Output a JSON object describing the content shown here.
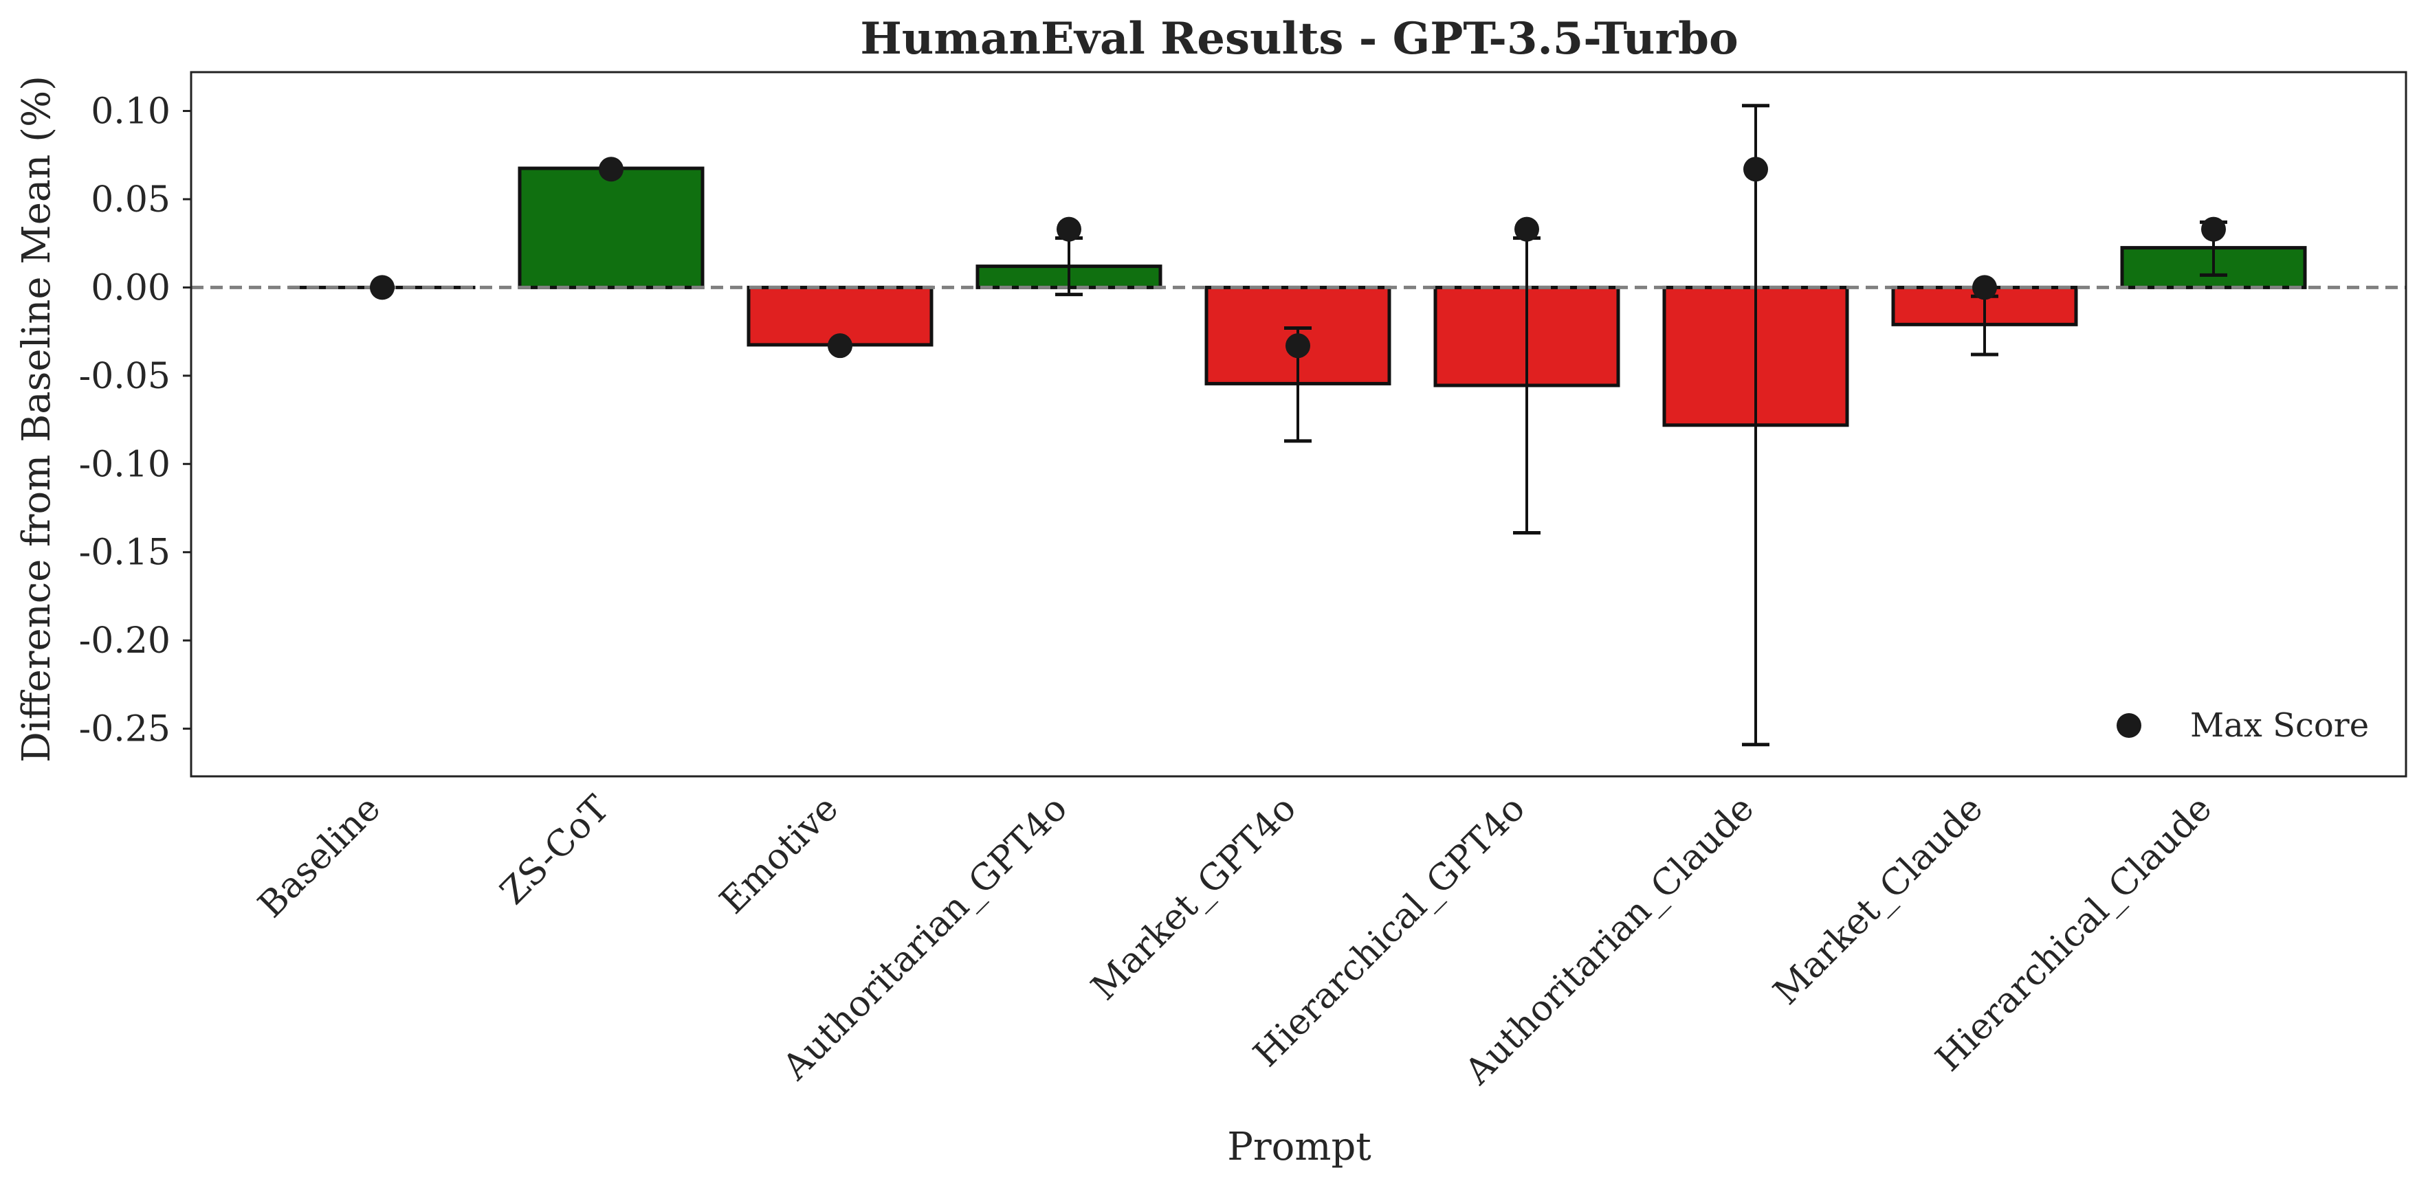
{
  "chart_data": {
    "type": "bar",
    "title": "HumanEval Results - GPT-3.5-Turbo",
    "xlabel": "Prompt",
    "ylabel": "Difference from Baseline Mean (%)",
    "categories": [
      "Baseline",
      "ZS-CoT",
      "Emotive",
      "Authoritarian_GPT4o",
      "Market_GPT4o",
      "Hierarchical_GPT4o",
      "Authoritarian_Claude",
      "Market_Claude",
      "Hierarchical_Claude"
    ],
    "values": [
      0.0,
      0.0675,
      -0.0325,
      0.012,
      -0.0545,
      -0.0555,
      -0.078,
      -0.021,
      0.0225
    ],
    "error_low": [
      null,
      null,
      null,
      -0.004,
      -0.087,
      -0.139,
      -0.259,
      -0.038,
      0.007
    ],
    "error_high": [
      null,
      null,
      null,
      0.028,
      -0.023,
      0.028,
      0.103,
      -0.005,
      0.037
    ],
    "max_score": [
      0.0,
      0.067,
      -0.033,
      0.033,
      -0.033,
      0.033,
      0.067,
      0.0,
      0.033
    ],
    "yticks": [
      "0.10",
      "0.05",
      "0.00",
      "-0.05",
      "-0.10",
      "-0.15",
      "-0.20",
      "-0.25"
    ],
    "ytick_values": [
      0.1,
      0.05,
      0.0,
      -0.05,
      -0.1,
      -0.15,
      -0.2,
      -0.25
    ],
    "ylim": [
      -0.277,
      0.122
    ],
    "baseline_reference": 0.0,
    "legend": {
      "label": "Max Score",
      "position": "lower-right"
    },
    "grid": false,
    "colors": {
      "positive": "#107010",
      "negative": "#e02020",
      "edge": "#111111",
      "marker": "#1a1a1a",
      "reference_line": "#808080"
    }
  }
}
